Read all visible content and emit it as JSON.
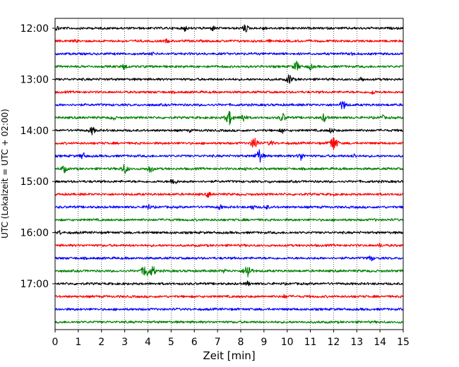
{
  "chart_data": {
    "type": "line",
    "subtype": "seismic-helicorder",
    "xlabel": "Zeit  [min]",
    "ylabel": "UTC (Lokalzeit = UTC + 02:00)",
    "xlim": [
      0,
      15
    ],
    "x_ticks": [
      "0",
      "1",
      "2",
      "3",
      "4",
      "5",
      "6",
      "7",
      "8",
      "9",
      "10",
      "11",
      "12",
      "13",
      "14",
      "15"
    ],
    "y_ticks": [
      "12:00",
      "13:00",
      "14:00",
      "15:00",
      "16:00",
      "17:00"
    ],
    "trace_colors": [
      "#000000",
      "#ff0000",
      "#0000ff",
      "#008000"
    ],
    "grid": "vertical dotted lines at each minute",
    "traces": [
      {
        "start": "12:00",
        "color": "#000000",
        "events": [
          {
            "x": 0.1,
            "amp": 0.3
          },
          {
            "x": 5.6,
            "amp": 0.35
          },
          {
            "x": 6.8,
            "amp": 0.3
          },
          {
            "x": 8.2,
            "amp": 0.45
          },
          {
            "x": 9.0,
            "amp": 0.25
          }
        ]
      },
      {
        "start": "12:15",
        "color": "#ff0000",
        "events": [
          {
            "x": 0.9,
            "amp": 0.2
          },
          {
            "x": 4.8,
            "amp": 0.25
          },
          {
            "x": 9.2,
            "amp": 0.2
          }
        ]
      },
      {
        "start": "12:30",
        "color": "#0000ff",
        "events": [
          {
            "x": 4.2,
            "amp": 0.2
          },
          {
            "x": 12.8,
            "amp": 0.2
          }
        ]
      },
      {
        "start": "12:45",
        "color": "#008000",
        "events": [
          {
            "x": 3.0,
            "amp": 0.4
          },
          {
            "x": 10.4,
            "amp": 0.55
          },
          {
            "x": 11.0,
            "amp": 0.35
          }
        ]
      },
      {
        "start": "13:00",
        "color": "#000000",
        "events": [
          {
            "x": 10.1,
            "amp": 0.55
          },
          {
            "x": 13.2,
            "amp": 0.3
          }
        ]
      },
      {
        "start": "13:15",
        "color": "#ff0000",
        "events": [
          {
            "x": 13.7,
            "amp": 0.3
          }
        ]
      },
      {
        "start": "13:30",
        "color": "#0000ff",
        "events": [
          {
            "x": 12.4,
            "amp": 0.55
          }
        ]
      },
      {
        "start": "13:45",
        "color": "#008000",
        "events": [
          {
            "x": 2.5,
            "amp": 0.3
          },
          {
            "x": 7.5,
            "amp": 0.75
          },
          {
            "x": 8.1,
            "amp": 0.5
          },
          {
            "x": 9.8,
            "amp": 0.5
          },
          {
            "x": 11.6,
            "amp": 0.45
          },
          {
            "x": 14.1,
            "amp": 0.3
          }
        ]
      },
      {
        "start": "14:00",
        "color": "#000000",
        "events": [
          {
            "x": 1.6,
            "amp": 0.45
          },
          {
            "x": 5.8,
            "amp": 0.2
          },
          {
            "x": 9.8,
            "amp": 0.3
          },
          {
            "x": 11.9,
            "amp": 0.35
          }
        ]
      },
      {
        "start": "14:15",
        "color": "#ff0000",
        "events": [
          {
            "x": 8.6,
            "amp": 0.7
          },
          {
            "x": 9.3,
            "amp": 0.35
          },
          {
            "x": 12.0,
            "amp": 0.85
          }
        ]
      },
      {
        "start": "14:30",
        "color": "#0000ff",
        "events": [
          {
            "x": 1.2,
            "amp": 0.4
          },
          {
            "x": 8.8,
            "amp": 0.75
          },
          {
            "x": 10.6,
            "amp": 0.45
          },
          {
            "x": 12.9,
            "amp": 0.25
          }
        ]
      },
      {
        "start": "14:45",
        "color": "#008000",
        "events": [
          {
            "x": 0.4,
            "amp": 0.4
          },
          {
            "x": 3.0,
            "amp": 0.55
          },
          {
            "x": 4.1,
            "amp": 0.45
          },
          {
            "x": 8.2,
            "amp": 0.2
          }
        ]
      },
      {
        "start": "15:00",
        "color": "#000000",
        "events": [
          {
            "x": 5.1,
            "amp": 0.45
          },
          {
            "x": 9.3,
            "amp": 0.2
          }
        ]
      },
      {
        "start": "15:15",
        "color": "#ff0000",
        "events": [
          {
            "x": 6.6,
            "amp": 0.35
          },
          {
            "x": 12.0,
            "amp": 0.15
          }
        ]
      },
      {
        "start": "15:30",
        "color": "#0000ff",
        "events": [
          {
            "x": 4.0,
            "amp": 0.35
          },
          {
            "x": 7.1,
            "amp": 0.3
          },
          {
            "x": 8.5,
            "amp": 0.3
          },
          {
            "x": 9.1,
            "amp": 0.3
          }
        ]
      },
      {
        "start": "15:45",
        "color": "#008000",
        "events": [
          {
            "x": 13.8,
            "amp": 0.15
          }
        ]
      },
      {
        "start": "16:00",
        "color": "#000000",
        "events": [
          {
            "x": 0.2,
            "amp": 0.25
          },
          {
            "x": 3.9,
            "amp": 0.2
          }
        ]
      },
      {
        "start": "16:15",
        "color": "#ff0000",
        "events": [
          {
            "x": 14.0,
            "amp": 0.25
          }
        ]
      },
      {
        "start": "16:30",
        "color": "#0000ff",
        "events": [
          {
            "x": 13.6,
            "amp": 0.35
          }
        ]
      },
      {
        "start": "16:45",
        "color": "#008000",
        "events": [
          {
            "x": 3.9,
            "amp": 0.8
          },
          {
            "x": 4.2,
            "amp": 0.6
          },
          {
            "x": 8.3,
            "amp": 0.8
          },
          {
            "x": 7.3,
            "amp": 0.25
          }
        ]
      },
      {
        "start": "17:00",
        "color": "#000000",
        "events": [
          {
            "x": 8.3,
            "amp": 0.3
          }
        ]
      },
      {
        "start": "17:15",
        "color": "#ff0000",
        "events": [
          {
            "x": 9.9,
            "amp": 0.25
          }
        ]
      },
      {
        "start": "17:30",
        "color": "#0000ff",
        "events": [
          {
            "x": 13.3,
            "amp": 0.15
          }
        ]
      },
      {
        "start": "17:45",
        "color": "#008000",
        "events": [
          {
            "x": 11.4,
            "amp": 0.15
          }
        ]
      }
    ]
  }
}
